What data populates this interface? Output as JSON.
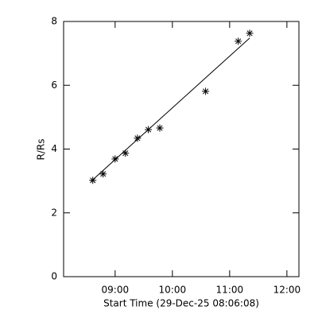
{
  "chart_data": {
    "type": "scatter",
    "x_label": "Start Time (29-Dec-25 08:06:08)",
    "y_label": "R/Rs",
    "x": [
      8.61,
      8.79,
      9.0,
      9.18,
      9.39,
      9.58,
      9.78,
      10.58,
      11.15,
      11.35
    ],
    "values": [
      3.02,
      3.22,
      3.69,
      3.87,
      4.34,
      4.61,
      4.66,
      5.81,
      7.38,
      7.63
    ],
    "fit_x": [
      8.58,
      11.35
    ],
    "fit_y": [
      2.99,
      7.48
    ],
    "color": "#000000",
    "xlim": [
      8.1,
      12.21
    ],
    "ylim": [
      0,
      8
    ],
    "xticks": [
      {
        "value": 9,
        "label": "09:00"
      },
      {
        "value": 10,
        "label": "10:00"
      },
      {
        "value": 11,
        "label": "11:00"
      },
      {
        "value": 12,
        "label": "12:00"
      }
    ],
    "yticks": [
      0,
      2,
      4,
      6,
      8
    ]
  }
}
